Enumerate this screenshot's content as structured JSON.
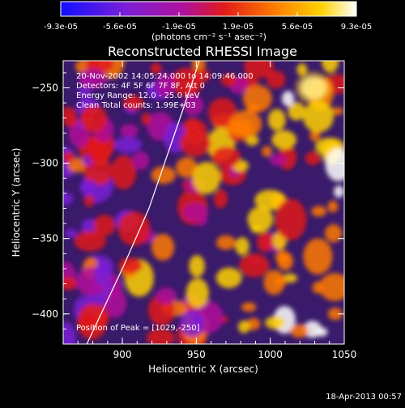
{
  "colorbar": {
    "ticks": [
      "-9.3e-05",
      "-5.6e-05",
      "-1.9e-05",
      "1.9e-05",
      "5.6e-05",
      "9.3e-05"
    ],
    "unit_label": "(photons cm⁻² s⁻¹ asec⁻²)",
    "colors": [
      "#1010ff",
      "#7a1fd6",
      "#b0109a",
      "#e01a1a",
      "#ff7a00",
      "#ffd200",
      "#ffffff"
    ]
  },
  "chart_data": {
    "type": "heatmap",
    "title": "Reconstructed RHESSI Image",
    "xlabel": "Heliocentric X (arcsec)",
    "ylabel": "Heliocentric Y (arcsec)",
    "xlim": [
      860,
      1050
    ],
    "ylim": [
      -420,
      -232
    ],
    "x_ticks": [
      900,
      950,
      1000,
      1050
    ],
    "y_ticks": [
      -250,
      -300,
      -350,
      -400
    ],
    "value_range": [
      -9.3e-05,
      9.3e-05
    ],
    "info_lines": [
      "20-Nov-2002 14:05:24.000 to 14:09:46.000",
      "Detectors: 4F 5F 6F 7F 8F, Att 0",
      "Energy Range: 12.0 - 25.0 keV",
      "Clean    Total counts: 1.99E+03"
    ],
    "peak_label": "Position of Peak = [1029,-250]",
    "peak_position": [
      1029,
      -250
    ],
    "limb_curve": [
      [
        876,
        -420
      ],
      [
        900,
        -370
      ],
      [
        918,
        -330
      ],
      [
        932,
        -290
      ],
      [
        946,
        -250
      ],
      [
        952,
        -232
      ]
    ]
  },
  "footer_date": "18-Apr-2013 00:57"
}
